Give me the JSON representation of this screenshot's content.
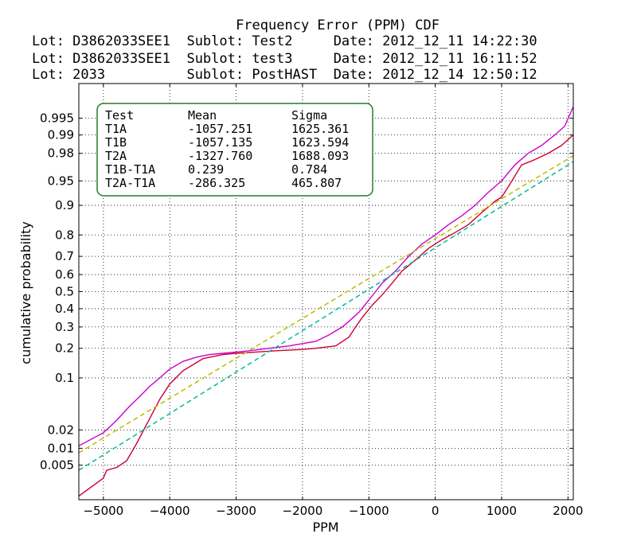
{
  "chart_data": {
    "type": "line",
    "title": "Frequency Error (PPM) CDF",
    "header_lines": [
      "Lot: D3862033SEE1  Sublot: Test2     Date: 2012_12_11 14:22:30",
      "Lot: D3862033SEE1  Sublot: test3     Date: 2012_12_11 16:11:52",
      "Lot: 2033          Sublot: PostHAST  Date: 2012_12_14 12:50:12"
    ],
    "xlabel": "PPM",
    "ylabel": "cumulative probability",
    "xlim": [
      -5370,
      2080
    ],
    "ylim": [
      0.001,
      0.999
    ],
    "yscale": "probability (normal quantile)",
    "xticks": [
      -5000,
      -4000,
      -3000,
      -2000,
      -1000,
      0,
      1000,
      2000
    ],
    "yticks": [
      0.005,
      0.01,
      0.02,
      0.1,
      0.2,
      0.3,
      0.4,
      0.5,
      0.6,
      0.7,
      0.8,
      0.9,
      0.95,
      0.98,
      0.99,
      0.995
    ],
    "yticklabels": [
      "0.005",
      "0.01",
      "0.02",
      "0.1",
      "0.2",
      "0.3",
      "0.4",
      "0.5",
      "0.6",
      "0.7",
      "0.8",
      "0.9",
      "0.95",
      "0.98",
      "0.99",
      "0.995"
    ],
    "grid": true,
    "colors": {
      "magenta": "#cc00cc",
      "crimson": "#cc0033",
      "olive": "#bbbb00",
      "teal": "#00bb99"
    },
    "stats_table": {
      "headers": [
        "Test",
        "Mean",
        "Sigma"
      ],
      "rows": [
        [
          "T1A",
          "-1057.251",
          "1625.361"
        ],
        [
          "T1B",
          "-1057.135",
          "1623.594"
        ],
        [
          "T2A",
          "-1327.760",
          "1688.093"
        ],
        [
          "T1B-T1A",
          "0.239",
          "0.784"
        ],
        [
          "T2A-T1A",
          "-286.325",
          "465.807"
        ]
      ]
    },
    "series": [
      {
        "color": "#cc00cc",
        "style": "solid",
        "points": [
          [
            -5370,
            0.011
          ],
          [
            -5000,
            0.018
          ],
          [
            -4800,
            0.028
          ],
          [
            -4600,
            0.045
          ],
          [
            -4450,
            0.06
          ],
          [
            -4300,
            0.08
          ],
          [
            -4150,
            0.1
          ],
          [
            -4000,
            0.125
          ],
          [
            -3800,
            0.15
          ],
          [
            -3600,
            0.165
          ],
          [
            -3400,
            0.175
          ],
          [
            -3200,
            0.18
          ],
          [
            -3000,
            0.185
          ],
          [
            -2800,
            0.19
          ],
          [
            -2500,
            0.2
          ],
          [
            -2200,
            0.21
          ],
          [
            -2000,
            0.22
          ],
          [
            -1800,
            0.23
          ],
          [
            -1600,
            0.26
          ],
          [
            -1400,
            0.3
          ],
          [
            -1300,
            0.33
          ],
          [
            -1150,
            0.38
          ],
          [
            -1000,
            0.45
          ],
          [
            -900,
            0.5
          ],
          [
            -800,
            0.55
          ],
          [
            -600,
            0.62
          ],
          [
            -400,
            0.7
          ],
          [
            -200,
            0.76
          ],
          [
            0,
            0.8
          ],
          [
            200,
            0.84
          ],
          [
            400,
            0.87
          ],
          [
            600,
            0.9
          ],
          [
            800,
            0.93
          ],
          [
            1000,
            0.95
          ],
          [
            1200,
            0.97
          ],
          [
            1400,
            0.98
          ],
          [
            1600,
            0.985
          ],
          [
            1800,
            0.99
          ],
          [
            1950,
            0.993
          ],
          [
            2080,
            0.997
          ]
        ]
      },
      {
        "color": "#cc0033",
        "style": "solid",
        "points": [
          [
            -5370,
            0.0012
          ],
          [
            -5000,
            0.0028
          ],
          [
            -4950,
            0.004
          ],
          [
            -4800,
            0.0045
          ],
          [
            -4650,
            0.006
          ],
          [
            -4500,
            0.012
          ],
          [
            -4300,
            0.03
          ],
          [
            -4150,
            0.055
          ],
          [
            -4000,
            0.085
          ],
          [
            -3800,
            0.12
          ],
          [
            -3500,
            0.16
          ],
          [
            -3200,
            0.175
          ],
          [
            -3000,
            0.18
          ],
          [
            -2700,
            0.185
          ],
          [
            -2400,
            0.19
          ],
          [
            -2000,
            0.195
          ],
          [
            -1800,
            0.2
          ],
          [
            -1500,
            0.21
          ],
          [
            -1300,
            0.25
          ],
          [
            -1200,
            0.3
          ],
          [
            -1100,
            0.35
          ],
          [
            -950,
            0.42
          ],
          [
            -800,
            0.48
          ],
          [
            -650,
            0.55
          ],
          [
            -500,
            0.62
          ],
          [
            -300,
            0.68
          ],
          [
            -100,
            0.74
          ],
          [
            100,
            0.78
          ],
          [
            300,
            0.81
          ],
          [
            500,
            0.84
          ],
          [
            700,
            0.88
          ],
          [
            900,
            0.91
          ],
          [
            1000,
            0.92
          ],
          [
            1100,
            0.94
          ],
          [
            1300,
            0.97
          ],
          [
            1500,
            0.975
          ],
          [
            1700,
            0.98
          ],
          [
            1900,
            0.985
          ],
          [
            2080,
            0.99
          ]
        ]
      },
      {
        "color": "#bbbb00",
        "style": "dashed",
        "mean": -1327.76,
        "sigma": 1688.093
      },
      {
        "color": "#00bb99",
        "style": "dashed",
        "mean": -1057.251,
        "sigma": 1625.361
      }
    ]
  }
}
